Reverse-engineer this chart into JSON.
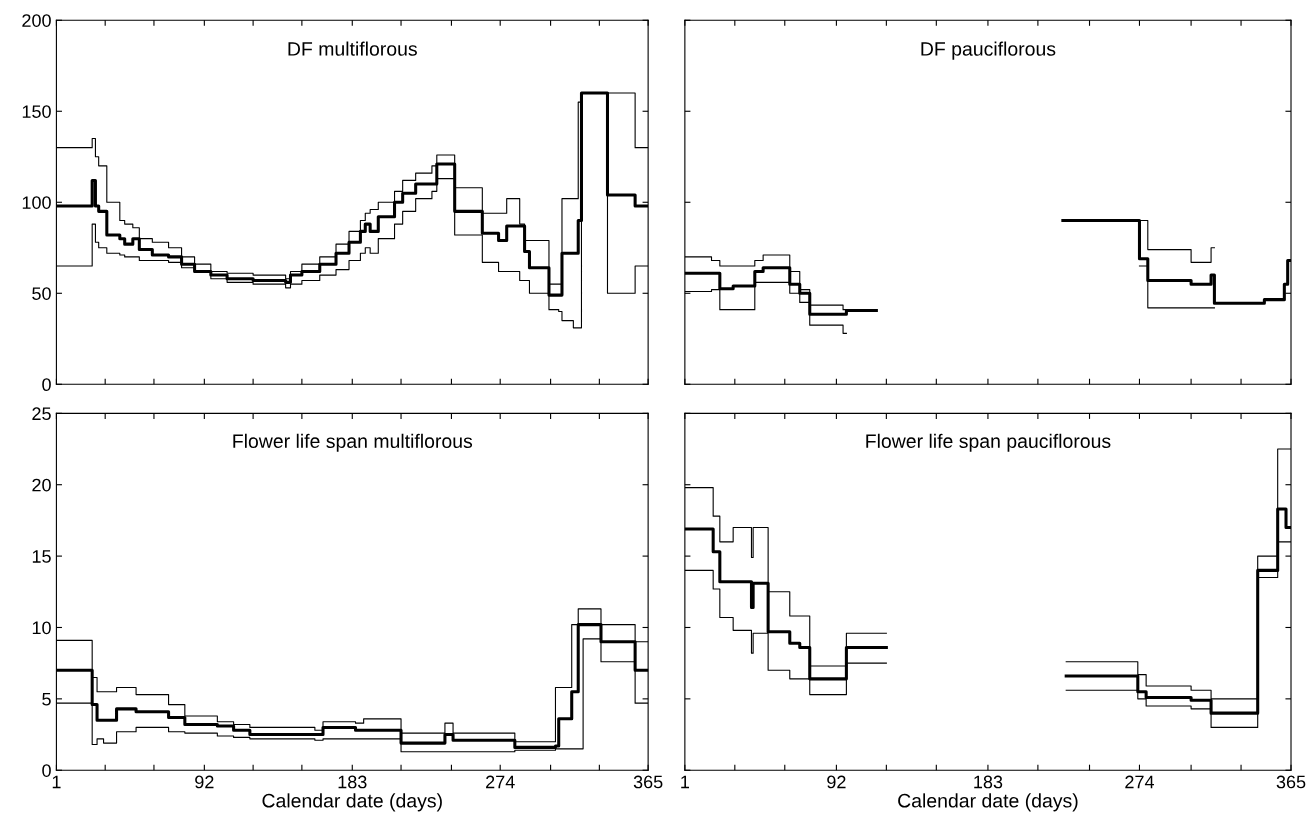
{
  "chart_data": [
    {
      "type": "step",
      "title": "DF multiflorous",
      "xlim": [
        1,
        365
      ],
      "ylim": [
        0,
        200
      ],
      "yticks": [
        0,
        50,
        100,
        150,
        200
      ],
      "tick_labels": "y",
      "xticks": [
        1,
        {
          "value": 31,
          "label": null
        },
        {
          "value": 61,
          "label": null
        },
        92,
        {
          "value": 122,
          "label": null
        },
        {
          "value": 152,
          "label": null
        },
        183,
        {
          "value": 213,
          "label": null
        },
        {
          "value": 244,
          "label": null
        },
        274,
        {
          "value": 305,
          "label": null
        },
        {
          "value": 335,
          "label": null
        },
        365
      ],
      "series": [
        {
          "color": "#000000",
          "x": [
            1,
            23,
            25,
            27,
            32,
            40,
            43,
            48,
            52,
            60,
            70,
            78,
            86,
            96,
            106,
            122,
            142,
            145,
            152,
            163,
            173,
            181,
            188,
            191,
            194,
            199,
            209,
            214,
            222,
            232,
            235,
            246,
            263,
            273,
            278,
            286,
            289,
            292,
            304,
            310,
            312,
            319,
            322,
            324,
            340,
            357,
            365
          ],
          "values": [
            98,
            112,
            98,
            95,
            82,
            80,
            77,
            80,
            74,
            71,
            70,
            66,
            62,
            60,
            58,
            57,
            56,
            60,
            62,
            66,
            72,
            78,
            84,
            88,
            84,
            92,
            100,
            105,
            110,
            110,
            121,
            95,
            83,
            79,
            87,
            87,
            73,
            64,
            49,
            49,
            72,
            72,
            90,
            160,
            104,
            98,
            98
          ]
        },
        {
          "color": "#000000",
          "x": [
            1,
            23,
            25,
            27,
            32,
            40,
            43,
            48,
            52,
            60,
            70,
            78,
            86,
            96,
            106,
            122,
            142,
            145,
            152,
            163,
            173,
            181,
            188,
            191,
            194,
            199,
            209,
            214,
            222,
            232,
            235,
            246,
            263,
            273,
            278,
            286,
            289,
            292,
            304,
            310,
            312,
            319,
            322,
            324,
            340,
            357,
            365
          ],
          "values": [
            65,
            88,
            78,
            75,
            72,
            71,
            70,
            70,
            68,
            68,
            67,
            64,
            62,
            58,
            56,
            55,
            53,
            55,
            57,
            60,
            63,
            68,
            72,
            75,
            72,
            80,
            88,
            95,
            102,
            106,
            113,
            82,
            67,
            62,
            62,
            57,
            57,
            50,
            41,
            40,
            35,
            31,
            31,
            160,
            50,
            65,
            65
          ]
        },
        {
          "color": "#000000",
          "x": [
            1,
            23,
            25,
            27,
            32,
            40,
            43,
            48,
            52,
            60,
            70,
            78,
            86,
            96,
            106,
            122,
            142,
            145,
            152,
            163,
            173,
            181,
            188,
            191,
            194,
            199,
            209,
            214,
            222,
            232,
            235,
            246,
            263,
            273,
            278,
            286,
            289,
            292,
            304,
            310,
            312,
            319,
            322,
            324,
            340,
            357,
            365
          ],
          "values": [
            130,
            135,
            125,
            120,
            100,
            90,
            88,
            86,
            80,
            78,
            75,
            70,
            66,
            62,
            61,
            60,
            58,
            62,
            66,
            70,
            77,
            84,
            90,
            94,
            96,
            100,
            106,
            112,
            116,
            120,
            126,
            108,
            94,
            94,
            102,
            88,
            79,
            79,
            55,
            55,
            102,
            102,
            155,
            160,
            160,
            130,
            130
          ]
        }
      ]
    },
    {
      "type": "step",
      "title": "DF pauciflorous",
      "xlim": [
        1,
        365
      ],
      "ylim": [
        0,
        200
      ],
      "tick_labels": false,
      "yticks": [
        0,
        50,
        100,
        150,
        200
      ],
      "xticks": [
        1,
        {
          "value": 31,
          "label": null
        },
        {
          "value": 61,
          "label": null
        },
        92,
        {
          "value": 122,
          "label": null
        },
        {
          "value": 152,
          "label": null
        },
        183,
        {
          "value": 213,
          "label": null
        },
        {
          "value": 244,
          "label": null
        },
        274,
        {
          "value": 305,
          "label": null
        },
        {
          "value": 335,
          "label": null
        },
        365
      ],
      "series": [
        {
          "color": "#000000",
          "x": [
            1,
            17,
            22,
            30,
            43,
            48,
            64,
            70,
            76,
            96,
            98,
            116,
            228,
            274,
            279,
            305,
            317,
            319,
            349,
            361,
            363,
            365
          ],
          "values": [
            61,
            61,
            52.5,
            54,
            62,
            64,
            55,
            50,
            38.5,
            38.5,
            40.5,
            null,
            90,
            69,
            57,
            55,
            60,
            44.5,
            46.5,
            55,
            68,
            68
          ]
        },
        {
          "color": "#000000",
          "x": [
            1,
            17,
            22,
            30,
            43,
            48,
            64,
            70,
            76,
            96,
            98,
            274,
            279,
            305,
            317,
            319
          ],
          "values": [
            51,
            52,
            41,
            41,
            56,
            56,
            50,
            45,
            32.5,
            28,
            null,
            65,
            42,
            42,
            42,
            42
          ]
        },
        {
          "color": "#000000",
          "x": [
            1,
            17,
            22,
            30,
            43,
            48,
            64,
            70,
            76,
            96,
            98,
            274,
            279,
            305,
            317,
            319
          ],
          "values": [
            70,
            68,
            65,
            65,
            68,
            71,
            62,
            52,
            43.5,
            41,
            null,
            90,
            74,
            67,
            75,
            75
          ]
        }
      ]
    },
    {
      "type": "step",
      "title": "Flower life span multiflorous",
      "xlabel": "Calendar date (days)",
      "xlim": [
        1,
        365
      ],
      "ylim": [
        0,
        25
      ],
      "yticks": [
        0,
        5,
        10,
        15,
        20,
        25
      ],
      "xticks": [
        1,
        {
          "value": 31,
          "label": null
        },
        {
          "value": 61,
          "label": null
        },
        92,
        {
          "value": 122,
          "label": null
        },
        {
          "value": 152,
          "label": null
        },
        183,
        {
          "value": 213,
          "label": null
        },
        {
          "value": 244,
          "label": null
        },
        274,
        {
          "value": 305,
          "label": null
        },
        {
          "value": 335,
          "label": null
        },
        365
      ],
      "series": [
        {
          "color": "#000000",
          "x": [
            1,
            23,
            26,
            30,
            38,
            50,
            70,
            80,
            100,
            110,
            120,
            160,
            165,
            185,
            190,
            213,
            240,
            245,
            283,
            308,
            310,
            318,
            322,
            325,
            336,
            357,
            365
          ],
          "values": [
            7.0,
            4.6,
            3.5,
            3.5,
            4.3,
            4.1,
            3.7,
            3.2,
            3.1,
            2.8,
            2.5,
            2.5,
            3.0,
            2.8,
            2.8,
            1.9,
            2.5,
            2.1,
            1.6,
            1.7,
            3.6,
            5.5,
            10.2,
            10.2,
            9.0,
            7.0,
            7.0
          ]
        },
        {
          "color": "#000000",
          "x": [
            1,
            23,
            26,
            30,
            38,
            50,
            70,
            80,
            100,
            110,
            120,
            160,
            165,
            185,
            190,
            213,
            240,
            245,
            283,
            308,
            310,
            318,
            322,
            325,
            336,
            357,
            365
          ],
          "values": [
            4.7,
            1.8,
            2.2,
            1.9,
            2.7,
            3.0,
            2.7,
            2.6,
            2.4,
            2.3,
            2.2,
            2.1,
            2.2,
            2.2,
            2.2,
            1.3,
            1.3,
            1.3,
            1.4,
            1.5,
            1.5,
            1.5,
            1.5,
            9.2,
            7.6,
            4.7,
            4.7
          ]
        },
        {
          "color": "#000000",
          "x": [
            1,
            23,
            26,
            30,
            38,
            50,
            70,
            80,
            100,
            110,
            120,
            160,
            165,
            185,
            190,
            213,
            240,
            245,
            283,
            308,
            310,
            318,
            322,
            325,
            336,
            357,
            365
          ],
          "values": [
            9.1,
            6.5,
            5.5,
            5.5,
            5.8,
            5.3,
            4.6,
            3.8,
            3.4,
            3.2,
            3.0,
            2.8,
            3.4,
            3.3,
            3.6,
            2.6,
            3.3,
            2.6,
            2.0,
            5.8,
            5.8,
            10.2,
            11.3,
            11.3,
            10.2,
            9.0,
            9.0
          ]
        }
      ]
    },
    {
      "type": "step",
      "title": "Flower life span pauciflorous",
      "xlabel": "Calendar date (days)",
      "xlim": [
        1,
        365
      ],
      "ylim": [
        0,
        25
      ],
      "yticks": [
        0,
        5,
        10,
        15,
        20,
        25
      ],
      "tick_labels": "x",
      "xticks": [
        1,
        {
          "value": 31,
          "label": null
        },
        {
          "value": 61,
          "label": null
        },
        92,
        {
          "value": 122,
          "label": null
        },
        {
          "value": 152,
          "label": null
        },
        183,
        {
          "value": 213,
          "label": null
        },
        {
          "value": 244,
          "label": null
        },
        274,
        {
          "value": 305,
          "label": null
        },
        {
          "value": 335,
          "label": null
        },
        365
      ],
      "series": [
        {
          "color": "#000000",
          "x": [
            1,
            18,
            22,
            30,
            41,
            42,
            51,
            64,
            70,
            76,
            98,
            122,
            230,
            273,
            278,
            305,
            317,
            345,
            357,
            362,
            365
          ],
          "values": [
            16.9,
            15.3,
            13.2,
            13.2,
            11.4,
            13.1,
            9.7,
            8.9,
            8.6,
            6.4,
            8.6,
            null,
            6.6,
            5.5,
            5.1,
            4.9,
            4.0,
            14.0,
            18.3,
            17.0,
            17.0
          ]
        },
        {
          "color": "#000000",
          "x": [
            1,
            18,
            22,
            30,
            41,
            42,
            51,
            64,
            70,
            76,
            98,
            122,
            230,
            273,
            278,
            305,
            317,
            345,
            357,
            362,
            365
          ],
          "values": [
            14.0,
            12.7,
            10.7,
            9.8,
            8.2,
            9.6,
            7.0,
            6.4,
            6.4,
            5.3,
            7.5,
            null,
            5.6,
            5.0,
            4.5,
            4.3,
            3.0,
            13.5,
            16.0,
            16.0,
            16.0
          ]
        },
        {
          "color": "#000000",
          "x": [
            1,
            18,
            22,
            30,
            41,
            42,
            51,
            64,
            70,
            76,
            98,
            122,
            230,
            273,
            278,
            305,
            317,
            345,
            357,
            362,
            365
          ],
          "values": [
            19.8,
            17.8,
            16.0,
            17.0,
            14.9,
            17.0,
            12.5,
            10.8,
            10.8,
            7.3,
            9.6,
            null,
            7.6,
            6.7,
            5.9,
            5.6,
            5.0,
            15.0,
            22.5,
            22.5,
            22.5
          ]
        }
      ]
    }
  ]
}
